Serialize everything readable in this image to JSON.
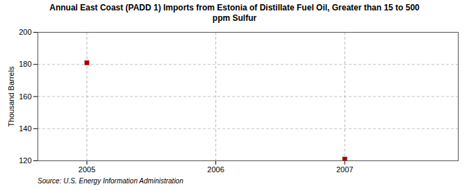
{
  "chart_data": {
    "type": "scatter",
    "title": "Annual East Coast (PADD 1) Imports from Estonia of Distillate Fuel Oil, Greater than 15 to 500\nppm Sulfur",
    "ylabel": "Thousand Barrels",
    "source": "Source: U.S. Energy Information Administration",
    "x": [
      2005,
      2007
    ],
    "values": [
      181,
      121
    ],
    "color": "#aa0000",
    "marker": "square",
    "xlim": [
      2004.62,
      2007.88
    ],
    "ylim": [
      120,
      200
    ],
    "xticks": [
      2005,
      2006,
      2007
    ],
    "yticks": [
      120,
      140,
      160,
      180,
      200
    ],
    "grid": true
  }
}
